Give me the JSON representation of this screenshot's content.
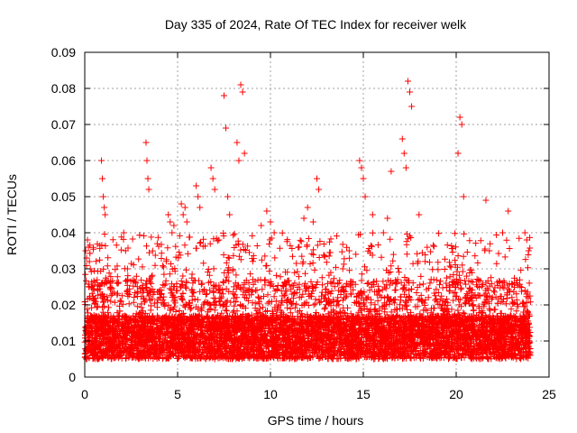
{
  "chart_data": {
    "type": "scatter",
    "title": "Day 335 of 2024, Rate Of TEC Index for receiver welk",
    "xlabel": "GPS time / hours",
    "ylabel": "ROTI / TECUs",
    "xlim": [
      0,
      25
    ],
    "ylim": [
      0,
      0.09
    ],
    "x_ticks": [
      0,
      5,
      10,
      15,
      20,
      25
    ],
    "y_ticks": [
      0,
      0.01,
      0.02,
      0.03,
      0.04,
      0.05,
      0.06,
      0.07,
      0.08,
      0.09
    ],
    "y_tick_labels": [
      "0",
      "0.01",
      "0.02",
      "0.03",
      "0.04",
      "0.05",
      "0.06",
      "0.07",
      "0.08",
      "0.09"
    ],
    "x_tick_labels": [
      "0",
      "5",
      "10",
      "15",
      "20",
      "25"
    ],
    "grid": true,
    "marker": "plus",
    "color": "#ff0000",
    "series": [
      {
        "x": [
          0.05,
          0.1,
          0.15,
          0.2,
          0.25,
          0.3,
          0.9,
          0.95,
          1.0,
          1.05,
          1.1,
          2.1,
          2.2,
          2.3,
          3.3,
          3.35,
          3.4,
          3.45,
          4.5,
          4.6,
          4.7,
          4.8,
          5.2,
          5.3,
          5.4,
          5.5,
          6.0,
          6.1,
          6.2,
          6.8,
          6.9,
          7.0,
          7.5,
          7.6,
          7.7,
          7.8,
          8.2,
          8.3,
          8.4,
          8.5,
          8.6,
          9.5,
          9.8,
          10.0,
          10.2,
          11.8,
          12.0,
          12.3,
          12.5,
          12.6,
          14.8,
          14.9,
          15.0,
          15.1,
          15.5,
          16.3,
          16.5,
          17.1,
          17.2,
          17.3,
          17.4,
          17.5,
          17.6,
          18.0,
          20.1,
          20.2,
          20.3,
          20.4,
          21.6,
          22.5,
          22.8,
          23.7,
          23.8,
          23.9
        ],
        "y": [
          0.035,
          0.033,
          0.038,
          0.036,
          0.032,
          0.03,
          0.06,
          0.055,
          0.05,
          0.047,
          0.045,
          0.04,
          0.035,
          0.03,
          0.065,
          0.06,
          0.055,
          0.052,
          0.045,
          0.043,
          0.04,
          0.042,
          0.048,
          0.045,
          0.047,
          0.043,
          0.053,
          0.05,
          0.047,
          0.058,
          0.055,
          0.052,
          0.078,
          0.069,
          0.05,
          0.045,
          0.065,
          0.06,
          0.081,
          0.079,
          0.062,
          0.042,
          0.046,
          0.043,
          0.04,
          0.044,
          0.047,
          0.043,
          0.055,
          0.052,
          0.06,
          0.058,
          0.055,
          0.05,
          0.045,
          0.044,
          0.057,
          0.066,
          0.062,
          0.058,
          0.082,
          0.079,
          0.075,
          0.045,
          0.062,
          0.072,
          0.07,
          0.05,
          0.049,
          0.04,
          0.046,
          0.04,
          0.038,
          0.035
        ]
      }
    ]
  }
}
